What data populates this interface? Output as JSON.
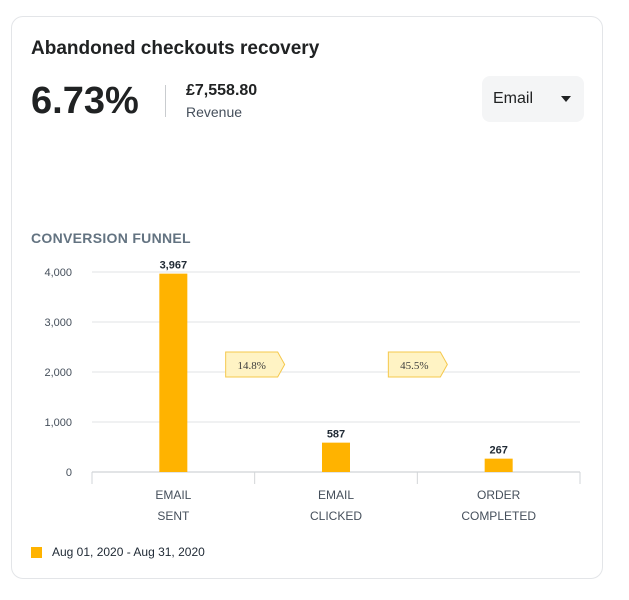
{
  "card": {
    "title": "Abandoned checkouts recovery",
    "metric": "6.73%",
    "revenue_value": "£7,558.80",
    "revenue_label": "Revenue",
    "channel_selected": "Email"
  },
  "colors": {
    "bar": "#ffb300",
    "rate_badge_fill": "#fff3c4",
    "rate_badge_border": "#f5c84c",
    "grid": "#e1e3e5",
    "axis_text": "#454f5b"
  },
  "chart_data": {
    "type": "bar",
    "title": "CONVERSION FUNNEL",
    "categories": [
      [
        "EMAIL",
        "SENT"
      ],
      [
        "EMAIL",
        "CLICKED"
      ],
      [
        "ORDER",
        "COMPLETED"
      ]
    ],
    "series": [
      {
        "name": "Aug 01, 2020 - Aug 31, 2020",
        "values": [
          3967,
          587,
          267
        ]
      }
    ],
    "value_labels": [
      "3,967",
      "587",
      "267"
    ],
    "conversion_rates": [
      "14.8%",
      "45.5%"
    ],
    "ylim": [
      0,
      4000
    ],
    "yticks": [
      0,
      1000,
      2000,
      3000,
      4000
    ],
    "ytick_labels": [
      "0",
      "1,000",
      "2,000",
      "3,000",
      "4,000"
    ],
    "grid": true,
    "legend_position": "bottom-left"
  }
}
